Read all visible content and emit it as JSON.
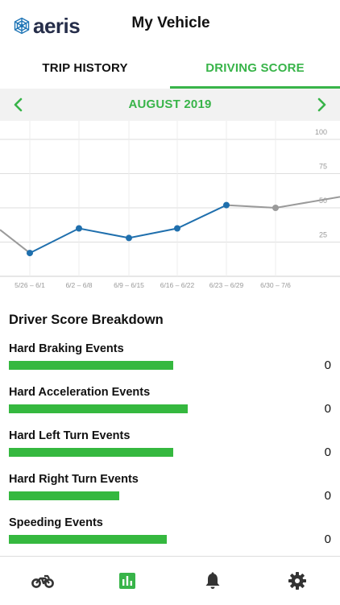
{
  "header": {
    "logo_text": "aeris",
    "title": "My Vehicle"
  },
  "tabs": [
    {
      "label": "TRIP HISTORY",
      "active": false
    },
    {
      "label": "DRIVING SCORE",
      "active": true
    }
  ],
  "month_selector": {
    "label": "AUGUST 2019",
    "prev_icon": "chevron-left-icon",
    "next_icon": "chevron-right-icon"
  },
  "colors": {
    "accent": "#38b449",
    "bar": "#35b83f",
    "line_primary": "#1f6fad",
    "line_secondary": "#9a9a9a",
    "grid": "#dedede"
  },
  "chart_data": {
    "type": "line",
    "x": [
      "5/26 – 6/1",
      "6/2 – 6/8",
      "6/9 – 6/15",
      "6/16 – 6/22",
      "6/23 – 6/29",
      "6/30 – 7/6"
    ],
    "y_ticks": [
      "100",
      "75",
      "50",
      "25"
    ],
    "ylim": [
      0,
      100
    ],
    "series": [
      {
        "values": [
          17,
          35,
          28,
          35,
          52,
          50
        ]
      }
    ],
    "edge_values": {
      "before": 34,
      "after": 58
    },
    "grid": true
  },
  "breakdown": {
    "title": "Driver Score Breakdown",
    "events": [
      {
        "label": "Hard Braking Events",
        "count": "0",
        "bar_fraction": 0.55
      },
      {
        "label": "Hard Acceleration Events",
        "count": "0",
        "bar_fraction": 0.6
      },
      {
        "label": "Hard Left Turn Events",
        "count": "0",
        "bar_fraction": 0.55
      },
      {
        "label": "Hard Right Turn Events",
        "count": "0",
        "bar_fraction": 0.37
      },
      {
        "label": "Speeding Events",
        "count": "0",
        "bar_fraction": 0.53
      }
    ]
  },
  "nav": [
    {
      "icon": "motorcycle-icon",
      "active": false
    },
    {
      "icon": "bar-chart-icon",
      "active": true
    },
    {
      "icon": "bell-icon",
      "active": false
    },
    {
      "icon": "gear-icon",
      "active": false
    }
  ]
}
